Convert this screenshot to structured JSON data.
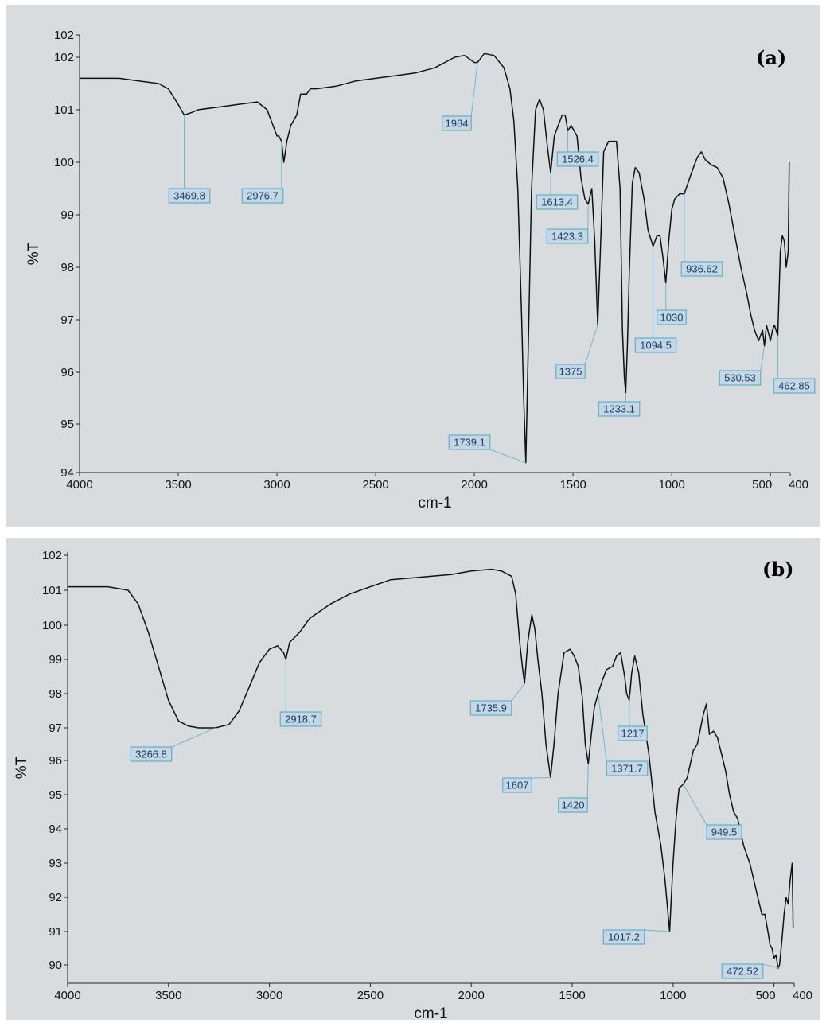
{
  "chart_data": [
    {
      "type": "line",
      "panel_label": "(a)",
      "xlabel": "cm-1",
      "ylabel": "%T",
      "xlim": [
        4000,
        400
      ],
      "ylim": [
        94,
        102.2
      ],
      "x_ticks": [
        {
          "v": 4000,
          "label": "4000"
        },
        {
          "v": 3500,
          "label": "3500"
        },
        {
          "v": 3000,
          "label": "3000"
        },
        {
          "v": 2500,
          "label": "2500"
        },
        {
          "v": 2000,
          "label": "2000"
        },
        {
          "v": 1500,
          "label": "1500"
        },
        {
          "v": 1000,
          "label": "1000"
        },
        {
          "v": 500,
          "label": "500"
        },
        {
          "v": 400,
          "label": "400"
        }
      ],
      "y_ticks": [
        {
          "v": 94,
          "label": "94"
        },
        {
          "v": 95,
          "label": "95"
        },
        {
          "v": 96,
          "label": "96"
        },
        {
          "v": 97,
          "label": "97"
        },
        {
          "v": 98,
          "label": "98"
        },
        {
          "v": 99,
          "label": "99"
        },
        {
          "v": 100,
          "label": "100"
        },
        {
          "v": 101,
          "label": "101"
        },
        {
          "v": 102,
          "label": "102"
        },
        {
          "v": 102.6,
          "label": "102"
        }
      ],
      "x": [
        4000,
        3900,
        3800,
        3700,
        3600,
        3550,
        3500,
        3469.8,
        3430,
        3400,
        3300,
        3200,
        3100,
        3050,
        3000,
        2990,
        2976.7,
        2965,
        2950,
        2930,
        2900,
        2880,
        2850,
        2830,
        2800,
        2700,
        2600,
        2500,
        2400,
        2300,
        2200,
        2150,
        2100,
        2050,
        2000,
        1984,
        1950,
        1900,
        1850,
        1820,
        1800,
        1780,
        1760,
        1750,
        1739.1,
        1725,
        1710,
        1690,
        1670,
        1650,
        1630,
        1613.4,
        1595,
        1575,
        1555,
        1540,
        1526.4,
        1510,
        1480,
        1460,
        1440,
        1423.3,
        1405,
        1390,
        1375,
        1360,
        1345,
        1320,
        1300,
        1280,
        1262,
        1250,
        1240,
        1233.1,
        1225,
        1215,
        1200,
        1185,
        1165,
        1140,
        1120,
        1094.5,
        1075,
        1060,
        1045,
        1030,
        1015,
        1000,
        985,
        960,
        936.62,
        900,
        870,
        850,
        830,
        800,
        770,
        740,
        710,
        680,
        650,
        620,
        600,
        580,
        560,
        540,
        530.53,
        520,
        500,
        490,
        480,
        462.85,
        450,
        440,
        430,
        420,
        410,
        405
      ],
      "y": [
        101.6,
        101.6,
        101.6,
        101.55,
        101.5,
        101.4,
        101.1,
        100.9,
        100.95,
        101.0,
        101.05,
        101.1,
        101.15,
        101.0,
        100.5,
        100.5,
        100.4,
        100.0,
        100.4,
        100.7,
        100.9,
        101.3,
        101.3,
        101.4,
        101.4,
        101.45,
        101.55,
        101.6,
        101.65,
        101.7,
        101.8,
        101.9,
        102.0,
        102.05,
        101.9,
        101.9,
        102.1,
        102.05,
        101.8,
        101.4,
        100.8,
        99.5,
        97.0,
        95.5,
        94.2,
        96.8,
        99.5,
        101.0,
        101.2,
        101.0,
        100.3,
        99.8,
        100.5,
        100.7,
        100.9,
        100.9,
        100.6,
        100.7,
        100.5,
        99.7,
        99.3,
        99.2,
        99.5,
        98.5,
        96.9,
        98.5,
        100.2,
        100.4,
        100.4,
        100.4,
        99.5,
        96.8,
        95.9,
        95.6,
        96.5,
        97.9,
        99.6,
        99.9,
        99.8,
        99.3,
        98.7,
        98.4,
        98.6,
        98.6,
        98.2,
        97.7,
        98.5,
        99.1,
        99.3,
        99.4,
        99.4,
        99.8,
        100.1,
        100.2,
        100.05,
        99.95,
        99.9,
        99.7,
        99.2,
        98.6,
        98.0,
        97.5,
        97.1,
        96.8,
        96.6,
        96.8,
        96.5,
        96.9,
        96.6,
        96.8,
        96.9,
        96.7,
        98.3,
        98.6,
        98.5,
        98.0,
        98.3,
        100.0
      ],
      "annotations": [
        {
          "text": "3469.8",
          "x": 3469.8,
          "y": 100.9
        },
        {
          "text": "2976.7",
          "x": 2976.7,
          "y": 100.4
        },
        {
          "text": "1984",
          "x": 1984,
          "y": 101.9
        },
        {
          "text": "1526.4",
          "x": 1526.4,
          "y": 100.6
        },
        {
          "text": "1613.4",
          "x": 1613.4,
          "y": 99.8
        },
        {
          "text": "1423.3",
          "x": 1423.3,
          "y": 99.2
        },
        {
          "text": "936.62",
          "x": 936.62,
          "y": 99.4
        },
        {
          "text": "1030",
          "x": 1030,
          "y": 97.7
        },
        {
          "text": "1094.5",
          "x": 1094.5,
          "y": 98.4
        },
        {
          "text": "1375",
          "x": 1375,
          "y": 96.9
        },
        {
          "text": "530.53",
          "x": 530.53,
          "y": 96.5
        },
        {
          "text": "462.85",
          "x": 462.85,
          "y": 96.7
        },
        {
          "text": "1233.1",
          "x": 1233.1,
          "y": 95.6
        },
        {
          "text": "1739.1",
          "x": 1739.1,
          "y": 94.2
        }
      ]
    },
    {
      "type": "line",
      "panel_label": "(b)",
      "xlabel": "cm-1",
      "ylabel": "%T",
      "xlim": [
        4000,
        400
      ],
      "ylim": [
        89.8,
        102
      ],
      "x_ticks": [
        {
          "v": 4000,
          "label": "4000"
        },
        {
          "v": 3500,
          "label": "3500"
        },
        {
          "v": 3000,
          "label": "3000"
        },
        {
          "v": 2500,
          "label": "2500"
        },
        {
          "v": 2000,
          "label": "2000"
        },
        {
          "v": 1500,
          "label": "1500"
        },
        {
          "v": 1000,
          "label": "1000"
        },
        {
          "v": 500,
          "label": "500"
        },
        {
          "v": 400,
          "label": "400"
        }
      ],
      "y_ticks": [
        {
          "v": 90,
          "label": "90"
        },
        {
          "v": 91,
          "label": "91"
        },
        {
          "v": 92,
          "label": "92"
        },
        {
          "v": 93,
          "label": "93"
        },
        {
          "v": 94,
          "label": "94"
        },
        {
          "v": 95,
          "label": "95"
        },
        {
          "v": 96,
          "label": "96"
        },
        {
          "v": 97,
          "label": "97"
        },
        {
          "v": 98,
          "label": "98"
        },
        {
          "v": 99,
          "label": "99"
        },
        {
          "v": 100,
          "label": "100"
        },
        {
          "v": 101,
          "label": "101"
        },
        {
          "v": 102,
          "label": "102"
        }
      ],
      "x": [
        4000,
        3900,
        3800,
        3700,
        3650,
        3600,
        3550,
        3500,
        3450,
        3400,
        3350,
        3300,
        3266.8,
        3200,
        3150,
        3100,
        3050,
        3000,
        2960,
        2930,
        2918.7,
        2900,
        2850,
        2800,
        2700,
        2600,
        2500,
        2400,
        2300,
        2200,
        2100,
        2000,
        1900,
        1850,
        1800,
        1780,
        1760,
        1745,
        1735.9,
        1720,
        1700,
        1685,
        1670,
        1650,
        1630,
        1607,
        1590,
        1570,
        1540,
        1510,
        1490,
        1470,
        1450,
        1435,
        1420,
        1405,
        1390,
        1371.7,
        1350,
        1330,
        1300,
        1280,
        1260,
        1240,
        1230,
        1217,
        1205,
        1190,
        1170,
        1150,
        1120,
        1090,
        1060,
        1040,
        1017.2,
        1000,
        985,
        970,
        949.5,
        930,
        900,
        880,
        850,
        835,
        820,
        800,
        780,
        760,
        740,
        720,
        700,
        680,
        650,
        620,
        600,
        580,
        560,
        545,
        530,
        520,
        510,
        500,
        490,
        480,
        472.52,
        460,
        450,
        440,
        430,
        420,
        410,
        405
      ],
      "y": [
        101.1,
        101.1,
        101.1,
        101.0,
        100.6,
        99.8,
        98.8,
        97.8,
        97.2,
        97.05,
        97.0,
        97.0,
        97.0,
        97.1,
        97.5,
        98.2,
        98.9,
        99.3,
        99.4,
        99.2,
        99.0,
        99.5,
        99.8,
        100.2,
        100.6,
        100.9,
        101.1,
        101.3,
        101.35,
        101.4,
        101.45,
        101.55,
        101.6,
        101.55,
        101.4,
        100.9,
        99.5,
        98.7,
        98.3,
        99.5,
        100.3,
        99.9,
        99.0,
        98.0,
        96.5,
        95.5,
        96.5,
        98.0,
        99.2,
        99.3,
        99.1,
        98.8,
        97.9,
        96.5,
        95.9,
        96.8,
        97.6,
        98.0,
        98.4,
        98.7,
        98.8,
        99.1,
        99.2,
        98.5,
        98.0,
        97.8,
        98.6,
        99.1,
        98.6,
        97.4,
        96.2,
        94.5,
        93.5,
        92.5,
        91.0,
        93.0,
        94.3,
        95.2,
        95.3,
        95.5,
        96.3,
        96.5,
        97.4,
        97.7,
        96.8,
        96.9,
        96.7,
        96.2,
        95.7,
        95.0,
        94.5,
        94.3,
        93.5,
        93.0,
        92.5,
        92.0,
        91.5,
        91.5,
        91.0,
        90.6,
        90.5,
        90.2,
        90.3,
        89.9,
        90.0,
        90.8,
        91.5,
        92.0,
        91.8,
        92.5,
        93.0,
        91.1
      ],
      "annotations": [
        {
          "text": "3266.8",
          "x": 3266.8,
          "y": 97.0
        },
        {
          "text": "2918.7",
          "x": 2918.7,
          "y": 99.0
        },
        {
          "text": "1735.9",
          "x": 1735.9,
          "y": 98.3
        },
        {
          "text": "1217",
          "x": 1217,
          "y": 98.0
        },
        {
          "text": "1607",
          "x": 1607,
          "y": 95.5
        },
        {
          "text": "1371.7",
          "x": 1371.7,
          "y": 98.0
        },
        {
          "text": "1420",
          "x": 1420,
          "y": 95.9
        },
        {
          "text": "949.5",
          "x": 949.5,
          "y": 95.3
        },
        {
          "text": "1017.2",
          "x": 1017.2,
          "y": 91.0
        },
        {
          "text": "472.52",
          "x": 472.52,
          "y": 89.9
        }
      ]
    }
  ]
}
